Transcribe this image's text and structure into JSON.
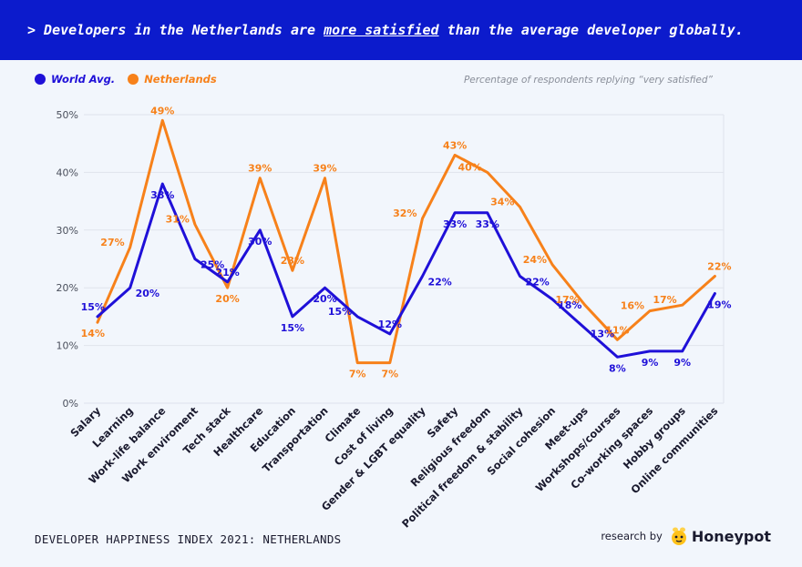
{
  "headline": {
    "prefix": "> Developers in the Netherlands are ",
    "highlight": "more satisfied",
    "suffix": " than the average developer globally."
  },
  "note": "Percentage of respondents replying “very satisfied”",
  "footer": {
    "title": "DEVELOPER HAPPINESS INDEX 2021: NETHERLANDS",
    "credit": "research by",
    "brand": "Honeypot"
  },
  "icons": {
    "brand_logo": "bee-icon"
  },
  "colors": {
    "world": "#1f10d8",
    "netherlands": "#f7811a",
    "banner": "#0c1bcc"
  },
  "chart_data": {
    "type": "line",
    "categories": [
      "Salary",
      "Learning",
      "Work-life balance",
      "Work enviroment",
      "Tech stack",
      "Healthcare",
      "Education",
      "Transportation",
      "Climate",
      "Cost of living",
      "Gender & LGBT equality",
      "Safety",
      "Religious freedom",
      "Political freedom & stability",
      "Social cohesion",
      "Meet-ups",
      "Workshops/courses",
      "Co-working spaces",
      "Hobby groups",
      "Online communities"
    ],
    "series": [
      {
        "name": "World Avg.",
        "values": [
          15,
          20,
          38,
          25,
          21,
          30,
          15,
          20,
          15,
          12,
          22,
          33,
          33,
          22,
          18,
          13,
          8,
          9,
          9,
          19
        ]
      },
      {
        "name": "Netherlands",
        "values": [
          14,
          27,
          49,
          31,
          20,
          39,
          23,
          39,
          7,
          7,
          32,
          43,
          40,
          34,
          24,
          17,
          11,
          16,
          17,
          22
        ]
      }
    ],
    "y_ticks": [
      "0%",
      "10%",
      "20%",
      "30%",
      "40%",
      "50%"
    ],
    "ylim": [
      0,
      50
    ],
    "grid": true,
    "legend": "top-left"
  }
}
